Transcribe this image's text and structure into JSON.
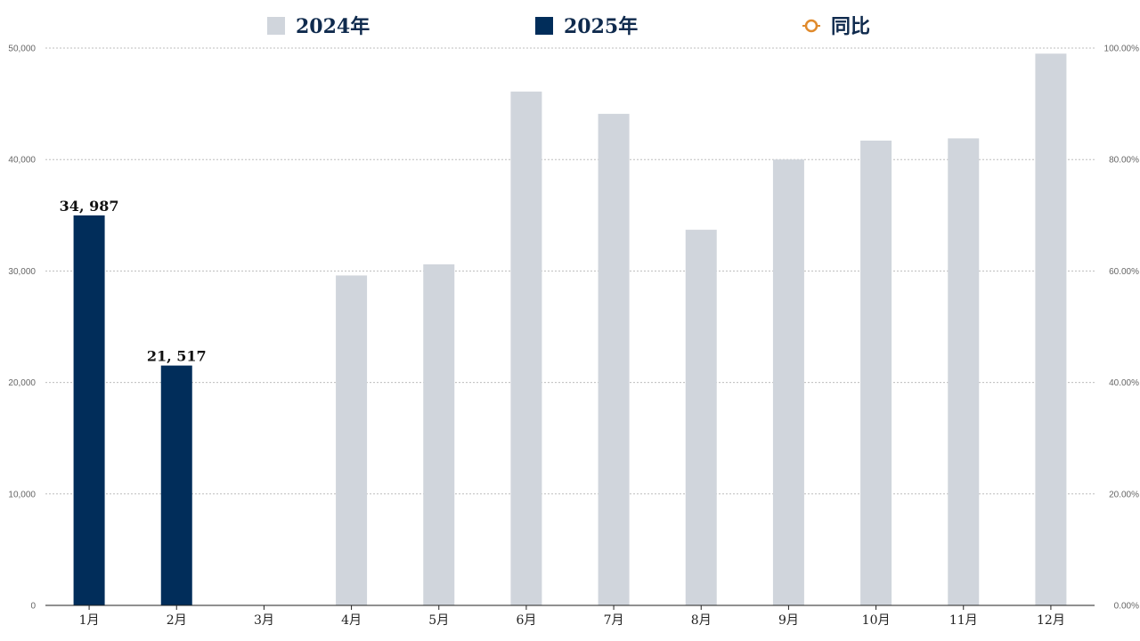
{
  "chart_data": {
    "type": "bar",
    "categories": [
      "1月",
      "2月",
      "3月",
      "4月",
      "5月",
      "6月",
      "7月",
      "8月",
      "9月",
      "10月",
      "11月",
      "12月"
    ],
    "series": [
      {
        "name": "2024年",
        "color": "#d0d5dc",
        "values": [
          null,
          null,
          null,
          29600,
          30600,
          46100,
          44100,
          33700,
          40000,
          41700,
          41900,
          49500
        ]
      },
      {
        "name": "2025年",
        "color": "#012d5a",
        "values": [
          34987,
          21517,
          null,
          null,
          null,
          null,
          null,
          null,
          null,
          null,
          null,
          null
        ]
      },
      {
        "name": "同比",
        "type": "line",
        "color": "#e08a2c",
        "marker": "circle",
        "values": [
          null,
          null,
          null,
          null,
          null,
          null,
          null,
          null,
          null,
          null,
          null,
          null
        ]
      }
    ],
    "data_labels": [
      {
        "category": "1月",
        "series": "2025年",
        "text": "34, 987"
      },
      {
        "category": "2月",
        "series": "2025年",
        "text": "21, 517"
      }
    ],
    "yleft": {
      "range": [
        0,
        50000
      ],
      "ticks": [
        "0",
        "10,000",
        "20,000",
        "30,000",
        "40,000",
        "50,000"
      ]
    },
    "yright": {
      "range": [
        0,
        100
      ],
      "ticks": [
        "0.00%",
        "20.00%",
        "40.00%",
        "60.00%",
        "80.00%",
        "100.00%"
      ]
    },
    "grid": true,
    "legend_position": "top-center"
  }
}
